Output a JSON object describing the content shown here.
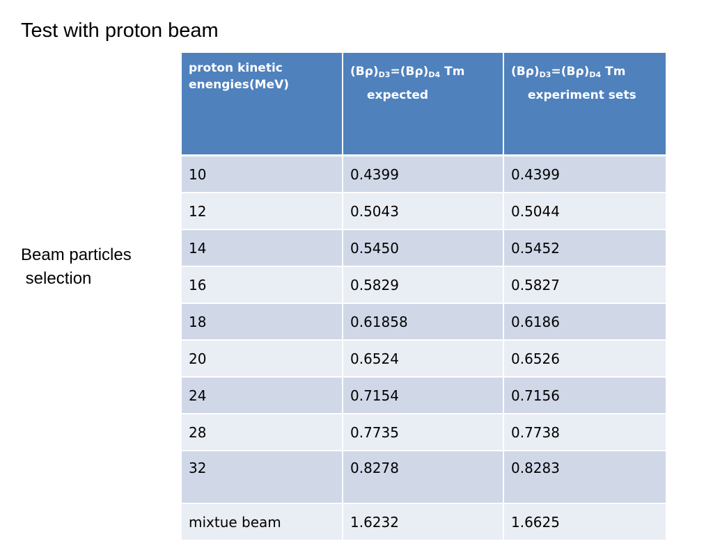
{
  "slide": {
    "title": "Test with proton beam",
    "side_label_line1": "Beam particles",
    "side_label_line2": " selection"
  },
  "table": {
    "header": {
      "col1_line1": "proton kinetic",
      "col1_line2": "enengies(MeV)",
      "br": "(Bρ)",
      "eq": "=(Bρ)",
      "sub_d3": "D3",
      "sub_d4": "D4",
      "unit": " Tm",
      "col2_line2": "expected",
      "col3_line2": "experiment sets"
    },
    "rows": [
      {
        "energy": "10",
        "expected": "0.4399",
        "experiment": "0.4399"
      },
      {
        "energy": "12",
        "expected": "0.5043",
        "experiment": "0.5044"
      },
      {
        "energy": "14",
        "expected": "0.5450",
        "experiment": "0.5452"
      },
      {
        "energy": "16",
        "expected": "0.5829",
        "experiment": "0.5827"
      },
      {
        "energy": "18",
        "expected": "0.61858",
        "experiment": "0.6186"
      },
      {
        "energy": "20",
        "expected": "0.6524",
        "experiment": "0.6526"
      },
      {
        "energy": "24",
        "expected": "0.7154",
        "experiment": "0.7156"
      },
      {
        "energy": "28",
        "expected": "0.7735",
        "experiment": "0.7738"
      },
      {
        "energy": "32",
        "expected": "0.8278",
        "experiment": "0.8283"
      },
      {
        "energy": "mixtue beam",
        "expected": "1.6232",
        "experiment": "1.6625"
      }
    ]
  },
  "colors": {
    "header_bg": "#4f81bd",
    "row_dark": "#d0d8e8",
    "row_light": "#e9edf4"
  }
}
